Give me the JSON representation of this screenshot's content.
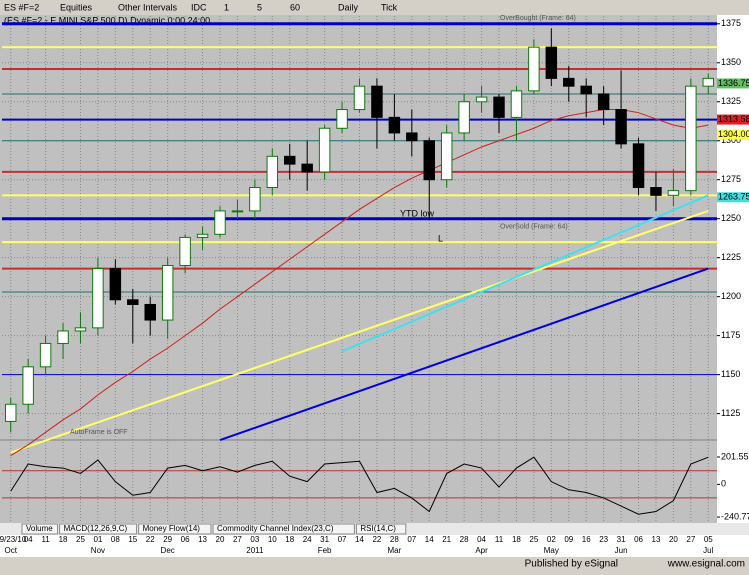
{
  "toolbar": {
    "symbol": "ES #F=2",
    "items": [
      "Equities",
      "Other Intervals",
      "IDC",
      "1",
      "5",
      "60",
      "Daily",
      "Tick"
    ]
  },
  "chart_data": {
    "type": "candlestick",
    "title": "(ES #F=2 - E MINI S&P 500 D) Dynamic 0:00 24:00",
    "categories": [
      "09/23/10",
      "04",
      "11",
      "18",
      "25",
      "01",
      "08",
      "15",
      "22",
      "29",
      "06",
      "13",
      "20",
      "27",
      "03",
      "10",
      "18",
      "24",
      "31",
      "07",
      "14",
      "22",
      "28",
      "07",
      "14",
      "21",
      "28",
      "04",
      "11",
      "18",
      "25",
      "02",
      "09",
      "16",
      "23",
      "31",
      "06",
      "13",
      "20",
      "27",
      "05"
    ],
    "months": [
      "Oct",
      null,
      null,
      null,
      null,
      "Nov",
      null,
      null,
      null,
      "Dec",
      null,
      null,
      null,
      null,
      "2011",
      null,
      null,
      null,
      "Feb",
      null,
      null,
      null,
      "Mar",
      null,
      null,
      null,
      null,
      "Apr",
      null,
      null,
      null,
      "May",
      null,
      null,
      null,
      "Jun",
      null,
      null,
      null,
      null,
      "Jul"
    ],
    "open": [
      1120,
      1131,
      1155,
      1170,
      1178,
      1180,
      1218,
      1198,
      1195,
      1185,
      1220,
      1238,
      1240,
      1255,
      1255,
      1270,
      1290,
      1285,
      1280,
      1308,
      1320,
      1335,
      1315,
      1305,
      1300,
      1275,
      1305,
      1325,
      1328,
      1315,
      1332,
      1360,
      1340,
      1335,
      1330,
      1320,
      1298,
      1270,
      1265,
      1268,
      1335
    ],
    "high": [
      1135,
      1160,
      1175,
      1183,
      1190,
      1225,
      1224,
      1205,
      1200,
      1225,
      1240,
      1245,
      1258,
      1262,
      1275,
      1295,
      1298,
      1300,
      1310,
      1325,
      1340,
      1340,
      1330,
      1320,
      1302,
      1310,
      1330,
      1335,
      1330,
      1335,
      1365,
      1372,
      1348,
      1340,
      1335,
      1345,
      1302,
      1280,
      1282,
      1340,
      1343
    ],
    "low": [
      1113,
      1125,
      1150,
      1160,
      1170,
      1175,
      1195,
      1170,
      1175,
      1173,
      1215,
      1230,
      1238,
      1250,
      1250,
      1265,
      1275,
      1268,
      1275,
      1305,
      1318,
      1295,
      1300,
      1290,
      1250,
      1270,
      1300,
      1318,
      1305,
      1300,
      1330,
      1335,
      1325,
      1315,
      1310,
      1295,
      1265,
      1255,
      1258,
      1265,
      1330
    ],
    "close": [
      1131,
      1155,
      1170,
      1178,
      1180,
      1218,
      1198,
      1195,
      1185,
      1220,
      1238,
      1240,
      1255,
      1255,
      1270,
      1290,
      1285,
      1280,
      1308,
      1320,
      1335,
      1315,
      1305,
      1300,
      1275,
      1305,
      1325,
      1328,
      1315,
      1332,
      1360,
      1340,
      1335,
      1330,
      1320,
      1298,
      1270,
      1265,
      1268,
      1335,
      1340
    ],
    "up_color": "#0a7a0a",
    "down_color": "#000000",
    "ma": {
      "color": "#d02020",
      "values": [
        1098,
        1105,
        1113,
        1121,
        1128,
        1137,
        1145,
        1152,
        1160,
        1167,
        1175,
        1183,
        1192,
        1200,
        1208,
        1216,
        1224,
        1232,
        1240,
        1248,
        1256,
        1263,
        1270,
        1276,
        1281,
        1286,
        1291,
        1296,
        1300,
        1304,
        1308,
        1313,
        1316,
        1318,
        1320,
        1320,
        1318,
        1314,
        1310,
        1308,
        1310
      ]
    },
    "trendlines": [
      {
        "color": "#ffff66",
        "x": [
          0,
          40
        ],
        "values": [
          1100,
          1255
        ]
      },
      {
        "color": "#40e0f0",
        "x": [
          19,
          40
        ],
        "values": [
          1165,
          1265
        ]
      },
      {
        "color": "#0000e0",
        "x": [
          12,
          40
        ],
        "values": [
          1108,
          1218
        ]
      }
    ],
    "levels": [
      {
        "value": 1375,
        "color": "#0000c0",
        "width": 3
      },
      {
        "value": 1360,
        "color": "#ffff66",
        "width": 2
      },
      {
        "value": 1346,
        "color": "#c03030",
        "width": 2
      },
      {
        "value": 1330,
        "color": "#207070",
        "width": 1
      },
      {
        "value": 1313.58,
        "color": "#0000c0",
        "width": 2
      },
      {
        "value": 1300,
        "color": "#207070",
        "width": 1
      },
      {
        "value": 1280,
        "color": "#c03030",
        "width": 2
      },
      {
        "value": 1265,
        "color": "#ffff66",
        "width": 2
      },
      {
        "value": 1250,
        "color": "#0000c0",
        "width": 3
      },
      {
        "value": 1235,
        "color": "#ffff66",
        "width": 2
      },
      {
        "value": 1218,
        "color": "#c03030",
        "width": 2
      },
      {
        "value": 1203,
        "color": "#207070",
        "width": 1
      },
      {
        "value": 1150,
        "color": "#0000c0",
        "width": 1
      }
    ],
    "price_markers": [
      {
        "value": 1336.75,
        "color": "#60c060"
      },
      {
        "value": 1313.58,
        "color": "#e02020"
      },
      {
        "value": 1304,
        "label": "1304.00",
        "color": "#ffff40"
      },
      {
        "value": 1263.75,
        "color": "#40e0e0"
      }
    ],
    "annotations": [
      "YTD low",
      "L",
      "OverSold (Frame: 64)",
      "OverBought (Frame: 64)",
      "AutoFrame is OFF"
    ],
    "ylim": [
      1110,
      1380
    ],
    "yticks": [
      1125,
      1150,
      1175,
      1200,
      1225,
      1250,
      1275,
      1300,
      1325,
      1350,
      1375
    ],
    "grid": true,
    "oscillator": {
      "color": "#000000",
      "values": [
        -50,
        150,
        130,
        120,
        80,
        180,
        20,
        -80,
        -60,
        120,
        140,
        100,
        130,
        90,
        140,
        170,
        60,
        20,
        150,
        160,
        170,
        -60,
        -30,
        -100,
        -200,
        80,
        150,
        120,
        -20,
        120,
        200,
        20,
        -40,
        -60,
        -100,
        -160,
        -220,
        -200,
        -120,
        150,
        200
      ],
      "ylim": [
        -270,
        290
      ],
      "yticks": [
        201.55,
        0,
        -240.77
      ],
      "levels": [
        100,
        -100
      ]
    },
    "tabs": [
      "Volume",
      "MACD(12,26,9,C)",
      "Money Flow(14)",
      "Commodity Channel Index(23,C)",
      "RSI(14,C)"
    ]
  },
  "footer": {
    "publisher": "Published by eSignal",
    "url": "www.esignal.com"
  }
}
